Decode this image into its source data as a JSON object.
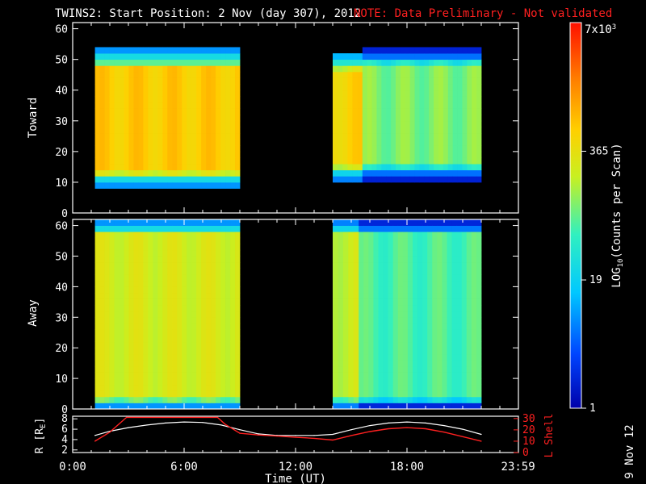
{
  "header": {
    "title": "TWINS2: Start Position:  2 Nov (day 307), 2012",
    "note": "NOTE: Data Preliminary - Not validated"
  },
  "colors": {
    "note": "#ff2020",
    "r_line": "#ffffff",
    "lshell_line": "#ff2020",
    "colormap": [
      "#0000aa",
      "#0044ff",
      "#00c8ff",
      "#30f0c0",
      "#c8f020",
      "#ffd000",
      "#ff8000",
      "#ff1000"
    ]
  },
  "chart_data": [
    {
      "type": "heatmap",
      "name": "toward-panel",
      "ylabel": "Toward",
      "ylim": [
        0,
        62
      ],
      "yticks": [
        "0",
        "10",
        "20",
        "30",
        "40",
        "50",
        "60"
      ],
      "xlim_hours": [
        0,
        24
      ],
      "data_gap_hours": [
        9.0,
        14.0
      ],
      "segments": [
        {
          "start_hours": 1.2,
          "end_hours": 9.0,
          "level": 0.72,
          "band_min": 12,
          "band_max": 48
        },
        {
          "start_hours": 14.0,
          "end_hours": 15.6,
          "level": 0.7,
          "band_min": 14,
          "band_max": 47
        },
        {
          "start_hours": 15.6,
          "end_hours": 22.0,
          "level": 0.5,
          "band_min": 13,
          "band_max": 49
        }
      ]
    },
    {
      "type": "heatmap",
      "name": "away-panel",
      "ylabel": "Away",
      "ylim": [
        0,
        62
      ],
      "yticks": [
        "0",
        "10",
        "20",
        "30",
        "40",
        "50",
        "60"
      ],
      "xlim_hours": [
        0,
        24
      ],
      "data_gap_hours": [
        9.0,
        14.0
      ],
      "segments": [
        {
          "start_hours": 1.2,
          "end_hours": 9.0,
          "level": 0.6,
          "band_min": 2,
          "band_max": 58
        },
        {
          "start_hours": 14.0,
          "end_hours": 15.4,
          "level": 0.58,
          "band_min": 2,
          "band_max": 58
        },
        {
          "start_hours": 15.4,
          "end_hours": 22.0,
          "level": 0.45,
          "band_min": 2,
          "band_max": 58
        }
      ]
    },
    {
      "type": "line",
      "name": "orbit-panel",
      "ylabel_left": "R [RE]",
      "ylabel_left_prefix": "R [R",
      "ylabel_left_sub": "E",
      "ylabel_left_suffix": "]",
      "ylabel_right": "L Shell",
      "yticks_left": [
        "2",
        "4",
        "6",
        "8"
      ],
      "yticks_right": [
        "0",
        "10",
        "20",
        "30"
      ],
      "ylim_left": [
        1.5,
        8.5
      ],
      "ylim_right": [
        0,
        32
      ],
      "series": [
        {
          "name": "R",
          "x_hours": [
            1.2,
            2.0,
            3.0,
            4.0,
            5.0,
            6.0,
            7.0,
            8.0,
            9.0,
            10.0,
            11.0,
            12.0,
            13.0,
            14.0,
            15.0,
            16.0,
            17.0,
            18.0,
            19.0,
            20.0,
            21.0,
            22.0
          ],
          "values": [
            4.8,
            5.6,
            6.3,
            6.8,
            7.2,
            7.4,
            7.3,
            6.8,
            5.9,
            5.1,
            4.8,
            4.8,
            4.8,
            5.0,
            5.9,
            6.7,
            7.2,
            7.4,
            7.2,
            6.7,
            6.0,
            5.0
          ]
        },
        {
          "name": "L Shell",
          "x_hours": [
            1.2,
            2.0,
            2.9,
            7.8,
            8.2,
            9.0,
            10.0,
            11.0,
            12.0,
            13.0,
            14.0,
            15.0,
            16.0,
            17.0,
            18.0,
            19.0,
            20.0,
            21.0,
            22.0
          ],
          "values": [
            10,
            18,
            31,
            31,
            25,
            17,
            15.5,
            14.5,
            13.5,
            12.5,
            11,
            15,
            18.5,
            21,
            22,
            21,
            18,
            14,
            10
          ]
        }
      ],
      "xtick_labels": [
        "0:00",
        "6:00",
        "12:00",
        "18:00",
        "23:59"
      ],
      "xtick_hours": [
        0,
        6,
        12,
        18,
        23.983
      ],
      "xlabel": "Time (UT)"
    }
  ],
  "colorbar": {
    "label": "LOG10(Counts per Scan)",
    "label_prefix": "LOG",
    "label_sub": "10",
    "label_suffix": "(Counts per Scan)",
    "ticks": [
      {
        "label": "1",
        "value": 1
      },
      {
        "label": "19",
        "value": 19
      },
      {
        "label": "365",
        "value": 365
      }
    ],
    "top_label_base": "7x10",
    "top_label_exp": "3",
    "max_value": 7000
  },
  "footer": {
    "date_stamp": "9 Nov 12"
  }
}
